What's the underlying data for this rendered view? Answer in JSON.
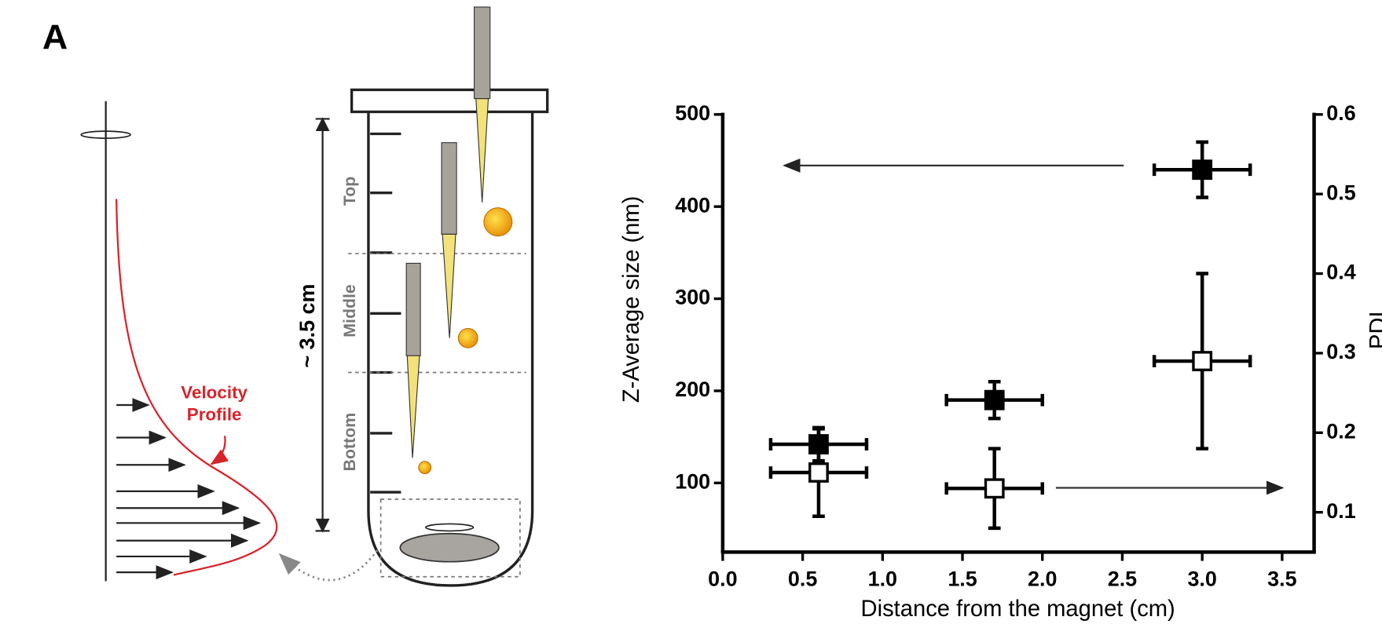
{
  "diagram": {
    "panel_label": "A",
    "velocity_label": [
      "Velocity",
      "Profile"
    ],
    "height_label": "~ 3.5 cm",
    "zones": [
      "Top",
      "Middle",
      "Bottom"
    ]
  },
  "chart_data": {
    "type": "scatter",
    "x_label": "Distance from the magnet (cm)",
    "y_label": "Z-Average size (nm)",
    "y2_label": "PDI",
    "x": [
      0.6,
      1.7,
      3.0
    ],
    "series": [
      {
        "color": "#000000",
        "marker": "filled-square",
        "values": [
          142,
          190,
          440
        ],
        "errors": [
          18,
          20,
          30
        ],
        "x_errors": [
          0.3,
          0.3,
          0.3
        ]
      },
      {
        "color": "#000000",
        "marker": "open-square",
        "axis": "y2",
        "values": [
          0.15,
          0.13,
          0.29
        ],
        "errors": [
          0.055,
          0.05,
          0.11
        ],
        "x_errors": [
          0.3,
          0.3,
          0.3
        ]
      }
    ],
    "xlim": [
      0,
      3.7
    ],
    "xticks": [
      {
        "value": 0,
        "label": "0.0"
      },
      {
        "value": 0.5,
        "label": "0.5"
      },
      {
        "value": 1,
        "label": "1.0"
      },
      {
        "value": 1.5,
        "label": "1.5"
      },
      {
        "value": 2,
        "label": "2.0"
      },
      {
        "value": 2.5,
        "label": "2.5"
      },
      {
        "value": 3,
        "label": "3.0"
      },
      {
        "value": 3.5,
        "label": "3.5"
      }
    ],
    "ylim": [
      25,
      500
    ],
    "yticks": [
      100,
      200,
      300,
      400,
      500
    ],
    "y2lim": [
      0.05,
      0.6
    ],
    "y2ticks": [
      0.1,
      0.2,
      0.3,
      0.4,
      0.5,
      0.6
    ],
    "grid": false
  }
}
